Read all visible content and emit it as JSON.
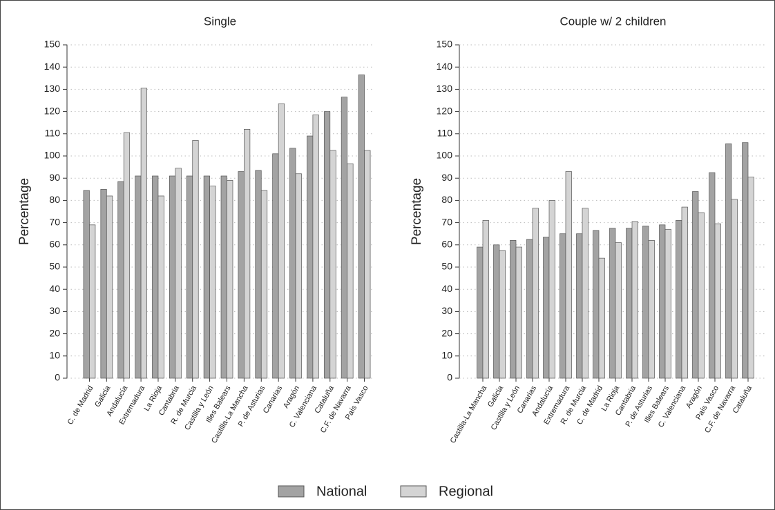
{
  "chart_data": [
    {
      "type": "bar",
      "title": "Single",
      "y_label": "Percentage",
      "categories": [
        "C. de Madrid",
        "Galicia",
        "Andalucía",
        "Extremadura",
        "La Rioja",
        "Cantabria",
        "R. de Murcia",
        "Castilla y León",
        "Illes Balears",
        "Castilla-La Mancha",
        "P. de Asturias",
        "Canarias",
        "Aragón",
        "C. Valenciana",
        "Cataluña",
        "C.F. de Navarra",
        "País Vasco"
      ],
      "series": [
        {
          "name": "National",
          "color": "#a3a3a3",
          "values": [
            84.5,
            85,
            88.5,
            91,
            91,
            91,
            91,
            91,
            91,
            93,
            93.5,
            101,
            103.5,
            109,
            120,
            126.5,
            136.5
          ]
        },
        {
          "name": "Regional",
          "color": "#d4d4d4",
          "values": [
            69,
            82,
            110.5,
            130.5,
            82,
            94.5,
            107,
            86.5,
            89,
            112,
            84.5,
            123.5,
            92,
            118.5,
            102.5,
            96.5,
            102.5
          ]
        }
      ],
      "ylim": [
        0,
        150
      ],
      "yticks": [
        0,
        10,
        20,
        30,
        40,
        50,
        60,
        70,
        80,
        90,
        100,
        110,
        120,
        130,
        140,
        150
      ],
      "grid": true
    },
    {
      "type": "bar",
      "title": "Couple w/ 2 children",
      "y_label": "Percentage",
      "categories": [
        "Castilla-La Mancha",
        "Galicia",
        "Castilla y León",
        "Canarias",
        "Andalucía",
        "Extremadura",
        "R. de Murcia",
        "C. de Madrid",
        "La Rioja",
        "Cantabria",
        "P. de Asturias",
        "Illes Balears",
        "C. Valenciana",
        "Aragón",
        "País Vasco",
        "C.F. de Navarra",
        "Cataluña"
      ],
      "series": [
        {
          "name": "National",
          "color": "#a3a3a3",
          "values": [
            59,
            60,
            62,
            62.5,
            63.5,
            65,
            65,
            66.5,
            67.5,
            67.5,
            68.5,
            69,
            71,
            84,
            92.5,
            105.5,
            106
          ]
        },
        {
          "name": "Regional",
          "color": "#d4d4d4",
          "values": [
            71,
            57.5,
            59,
            76.5,
            80,
            93,
            76.5,
            54,
            61,
            70.5,
            62,
            67,
            77,
            74.5,
            69.5,
            80.5,
            90.5
          ]
        }
      ],
      "ylim": [
        0,
        150
      ],
      "yticks": [
        0,
        10,
        20,
        30,
        40,
        50,
        60,
        70,
        80,
        90,
        100,
        110,
        120,
        130,
        140,
        150
      ],
      "grid": true
    }
  ]
}
